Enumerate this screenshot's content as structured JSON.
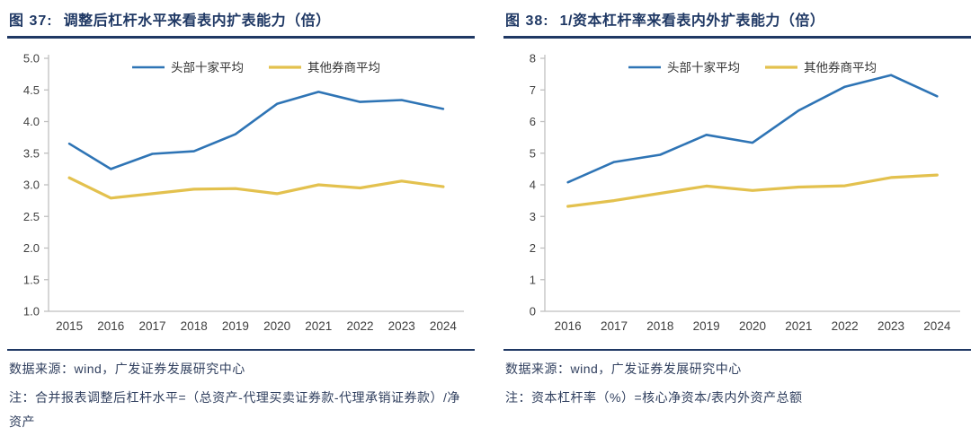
{
  "colors": {
    "title_navy": "#1F3864",
    "separator": "#1F3864",
    "footer_text": "#31405F",
    "axis_line": "#BFBFBF",
    "axis_text": "#404040",
    "series_blue": "#2E74B5",
    "series_gold": "#E3C14E",
    "background": "#FFFFFF"
  },
  "figures": [
    {
      "label": "图 37:",
      "title": "调整后杠杆水平来看表内扩表能力（倍）",
      "source": "数据来源：wind，广发证券发展研究中心",
      "note": "注：合并报表调整后杠杆水平=（总资产-代理买卖证券款-代理承销证券款）/净资产"
    },
    {
      "label": "图 38:",
      "title": "1/资本杠杆率来看表内外扩表能力（倍）",
      "source": "数据来源：wind，广发证券发展研究中心",
      "note": "注：资本杠杆率（%）=核心净资本/表内外资产总额"
    }
  ],
  "chart_data": [
    {
      "type": "line",
      "title": "图 37: 调整后杠杆水平来看表内扩表能力（倍）",
      "categories": [
        "2015",
        "2016",
        "2017",
        "2018",
        "2019",
        "2020",
        "2021",
        "2022",
        "2023",
        "2024"
      ],
      "series": [
        {
          "name": "头部十家平均",
          "color": "#2E74B5",
          "width": 2.6,
          "values": [
            3.65,
            3.25,
            3.49,
            3.53,
            3.8,
            4.28,
            4.47,
            4.31,
            4.34,
            4.2
          ]
        },
        {
          "name": "其他券商平均",
          "color": "#E3C14E",
          "width": 3.2,
          "values": [
            3.11,
            2.79,
            2.86,
            2.93,
            2.94,
            2.86,
            3.0,
            2.95,
            3.06,
            2.97
          ]
        }
      ],
      "xlabel": "",
      "ylabel": "",
      "ylim": [
        1.0,
        5.0
      ],
      "ytick_step": 0.5,
      "y_decimals": 1,
      "grid": false,
      "legend_position": "top-center-inside"
    },
    {
      "type": "line",
      "title": "图 38: 1/资本杠杆率来看表内外扩表能力（倍）",
      "categories": [
        "2016",
        "2017",
        "2018",
        "2019",
        "2020",
        "2021",
        "2022",
        "2023",
        "2024"
      ],
      "series": [
        {
          "name": "头部十家平均",
          "color": "#2E74B5",
          "width": 2.6,
          "values": [
            4.08,
            4.72,
            4.95,
            5.58,
            5.33,
            6.35,
            7.1,
            7.47,
            6.8
          ]
        },
        {
          "name": "其他券商平均",
          "color": "#E3C14E",
          "width": 3.2,
          "values": [
            3.32,
            3.5,
            3.73,
            3.96,
            3.82,
            3.93,
            3.97,
            4.23,
            4.31
          ]
        }
      ],
      "xlabel": "",
      "ylabel": "",
      "ylim": [
        0,
        8
      ],
      "ytick_step": 1,
      "y_decimals": 0,
      "grid": false,
      "legend_position": "top-center-inside"
    }
  ]
}
